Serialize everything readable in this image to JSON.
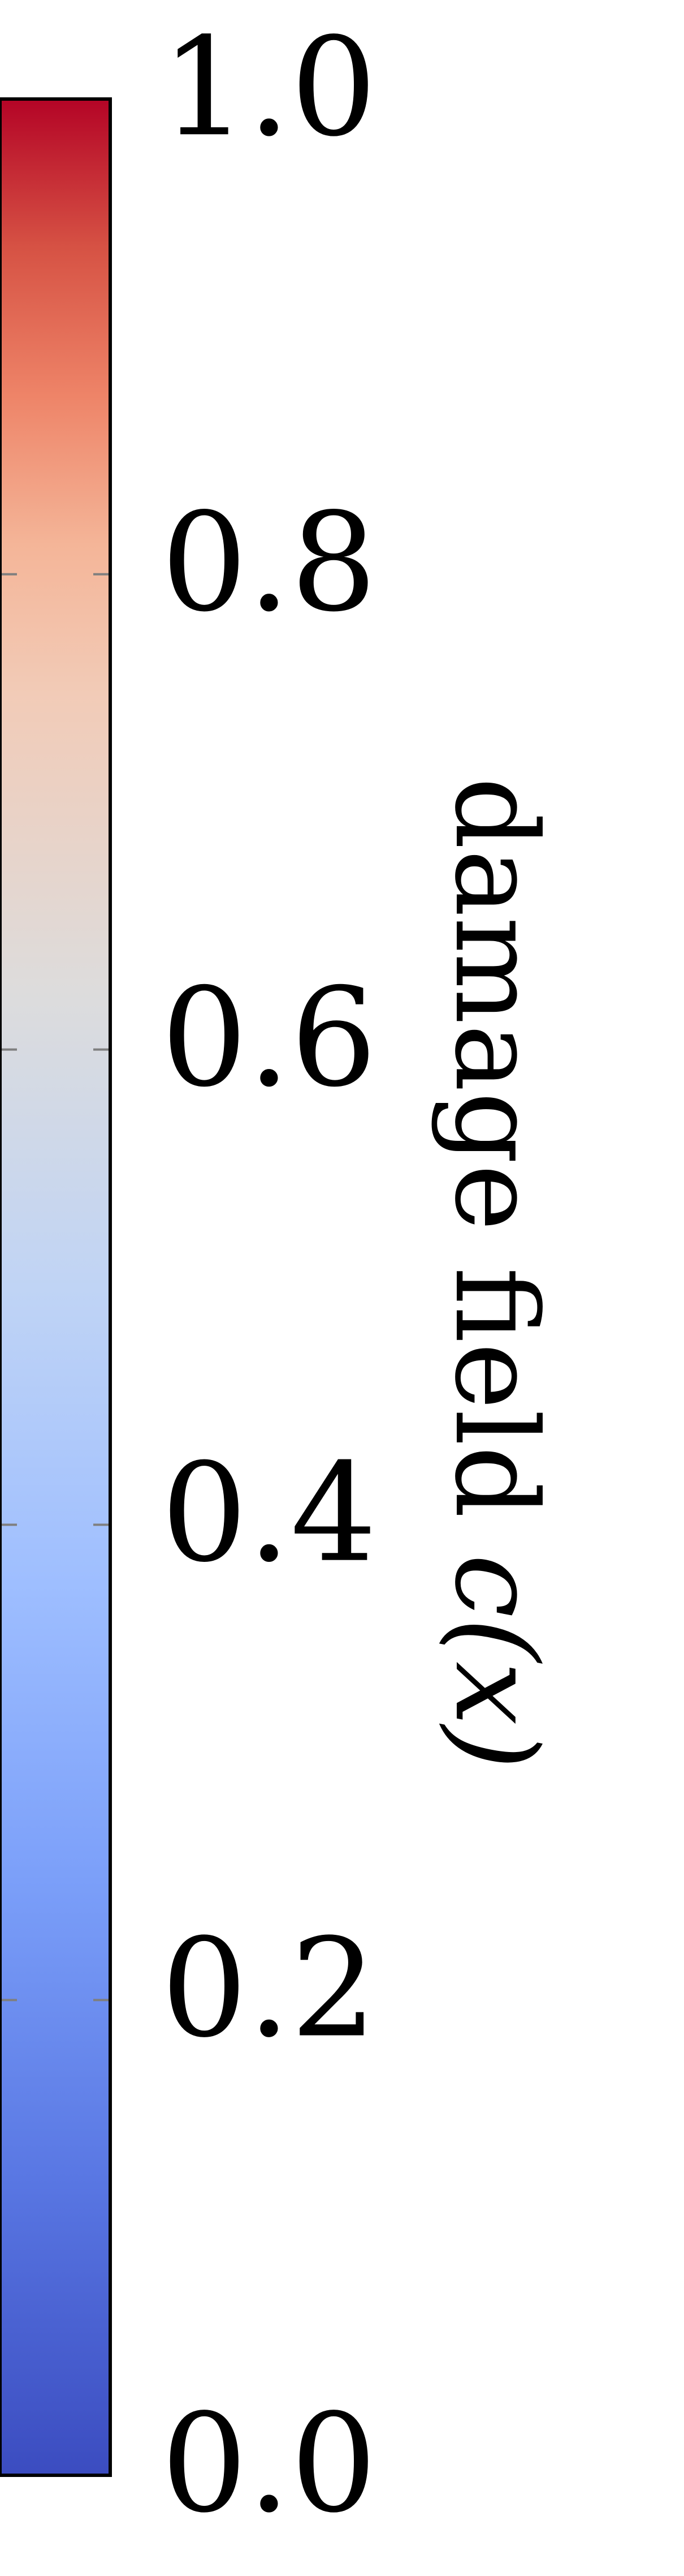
{
  "chart_data": {
    "type": "colorbar",
    "colormap": "coolwarm",
    "orientation": "vertical",
    "range": [
      0.0,
      1.0
    ],
    "ticks": [
      {
        "value": 0.0,
        "label": "0.0"
      },
      {
        "value": 0.2,
        "label": "0.2"
      },
      {
        "value": 0.4,
        "label": "0.4"
      },
      {
        "value": 0.6,
        "label": "0.6"
      },
      {
        "value": 0.8,
        "label": "0.8"
      },
      {
        "value": 1.0,
        "label": "1.0"
      }
    ],
    "label": {
      "text": "damage field ",
      "math": "c(x)"
    },
    "colors": {
      "low": "#3b4cc0",
      "mid": "#dddcdc",
      "high": "#b40426",
      "frame": "#000000",
      "tick_mark": "#7f7f7f"
    }
  }
}
